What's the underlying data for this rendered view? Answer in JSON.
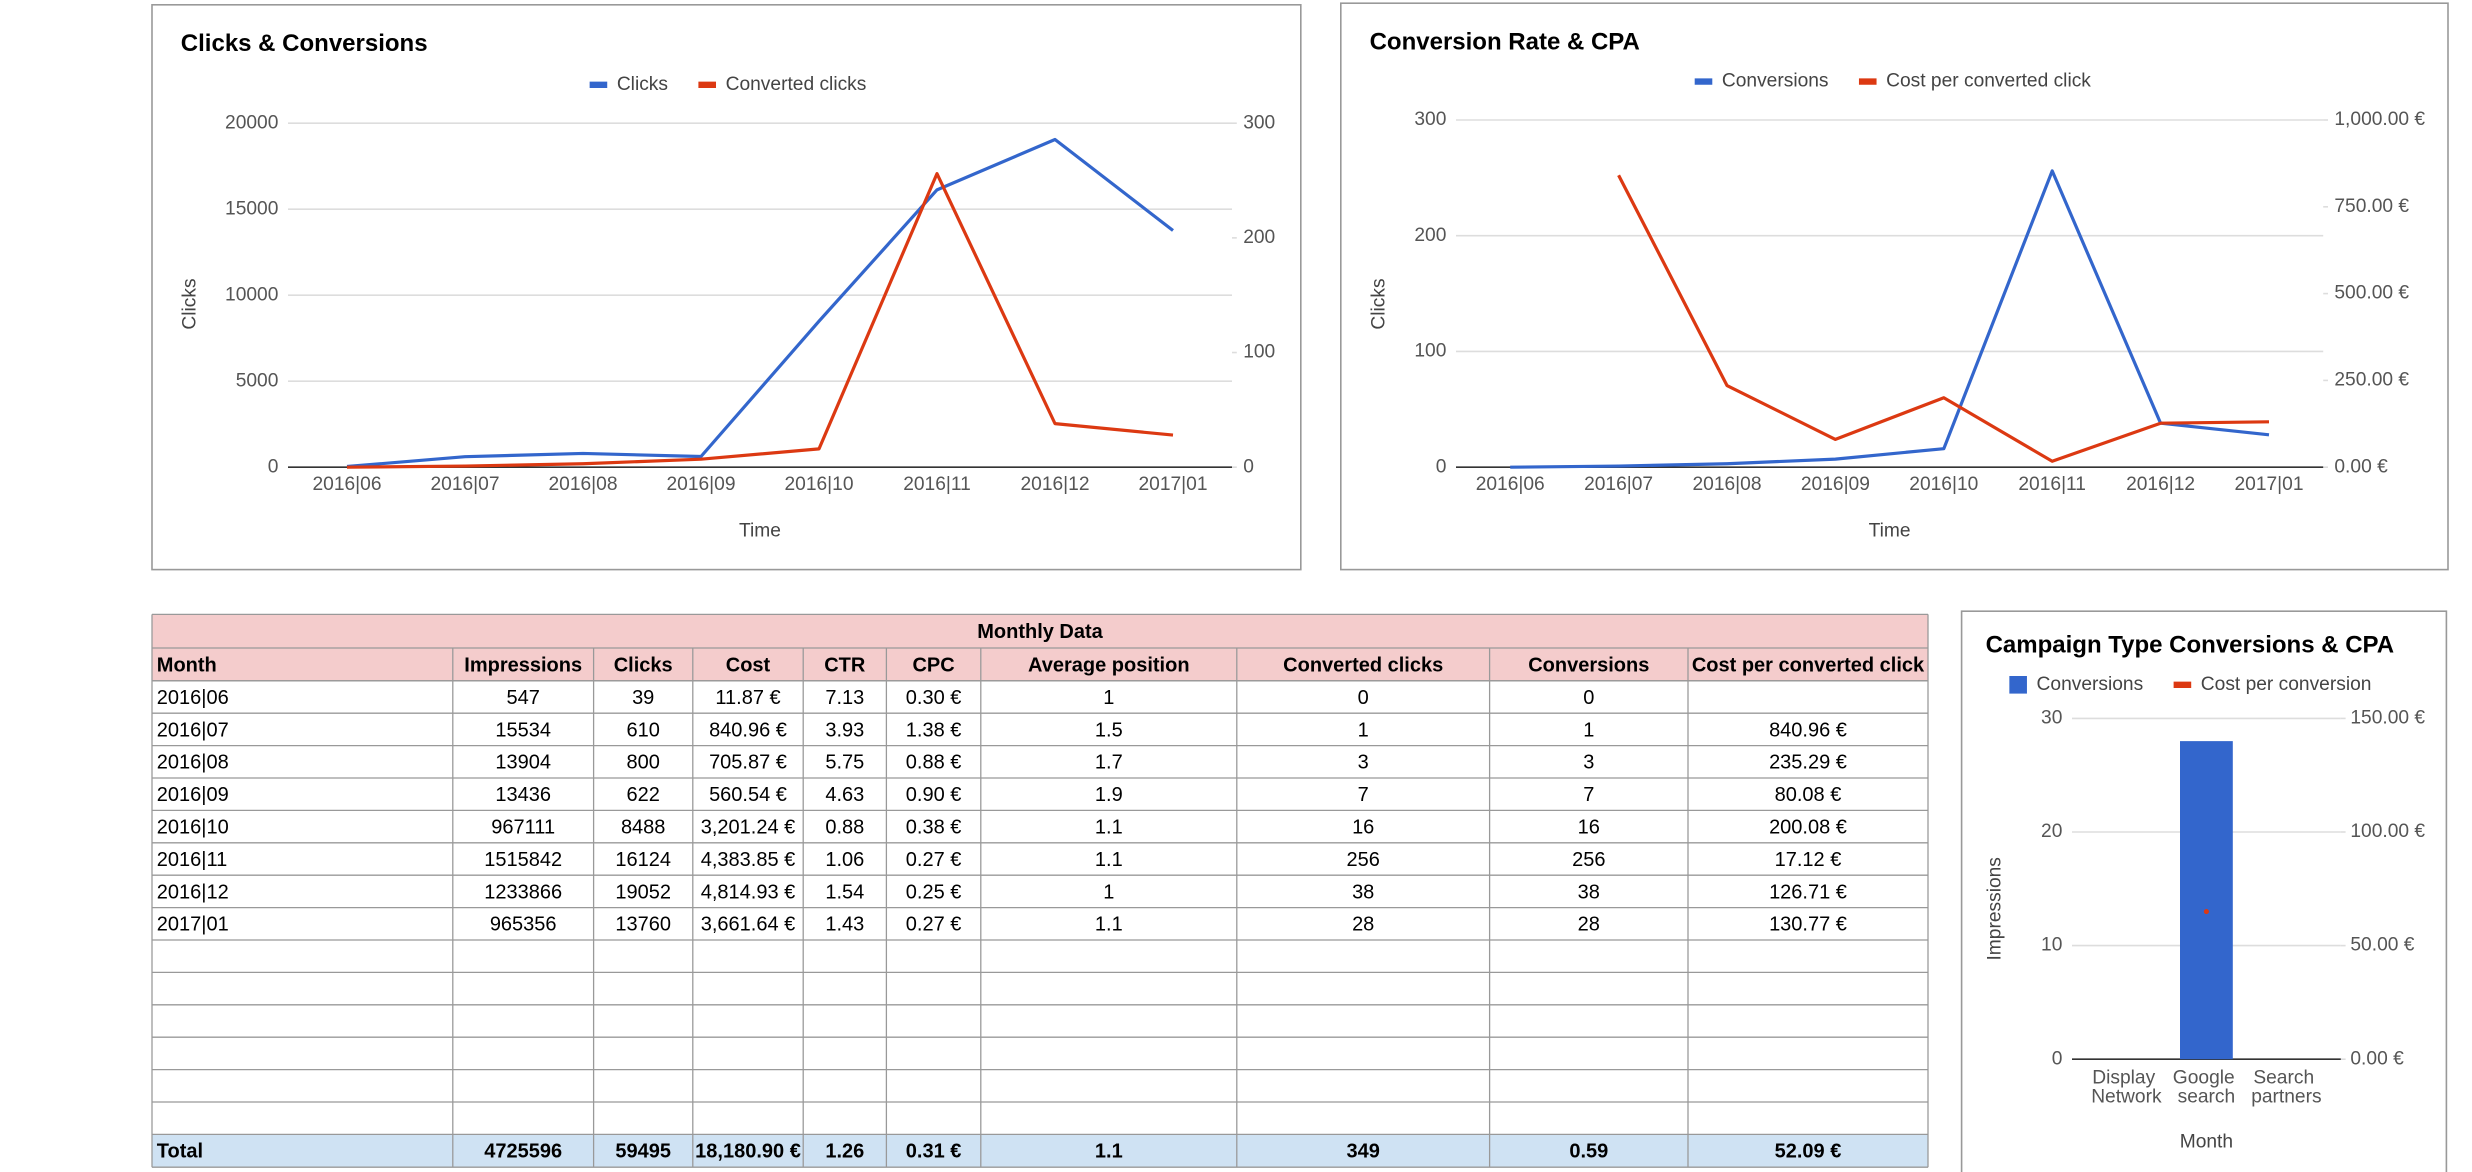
{
  "chart_data": [
    {
      "type": "line",
      "title": "Clicks & Conversions",
      "x_label": "Time",
      "y_label": "Clicks",
      "categories": [
        "2016|06",
        "2016|07",
        "2016|08",
        "2016|09",
        "2016|10",
        "2016|11",
        "2016|12",
        "2017|01"
      ],
      "series": [
        {
          "name": "Clicks",
          "color": "#3366cc",
          "values": [
            39,
            610,
            800,
            622,
            8488,
            16124,
            19052,
            13760
          ]
        },
        {
          "name": "Converted clicks",
          "color": "#dc3912",
          "axis": "y2",
          "values": [
            0,
            1,
            3,
            7,
            16,
            256,
            38,
            28
          ]
        }
      ],
      "ylim": [
        0,
        20000
      ],
      "yticks": [
        0,
        5000,
        10000,
        15000,
        20000
      ],
      "y2lim": [
        0,
        300
      ],
      "y2ticks": [
        0,
        100,
        200,
        300
      ],
      "grid": true,
      "legend": "top"
    },
    {
      "type": "line",
      "title": "Conversion Rate & CPA",
      "x_label": "Time",
      "y_label": "Clicks",
      "categories": [
        "2016|06",
        "2016|07",
        "2016|08",
        "2016|09",
        "2016|10",
        "2016|11",
        "2016|12",
        "2017|01"
      ],
      "series": [
        {
          "name": "Conversions",
          "color": "#3366cc",
          "values": [
            0,
            1,
            3,
            7,
            16,
            256,
            38,
            28
          ]
        },
        {
          "name": "Cost per converted click",
          "color": "#dc3912",
          "axis": "y2",
          "values": [
            null,
            840.96,
            235.29,
            80.08,
            200.08,
            17.12,
            126.71,
            130.77
          ]
        }
      ],
      "ylim": [
        0,
        300
      ],
      "yticks": [
        0,
        100,
        200,
        300
      ],
      "y2lim": [
        0,
        1000
      ],
      "y2ticks": [
        {
          "value": 0,
          "label": "0.00 €"
        },
        {
          "value": 250,
          "label": "250.00 €"
        },
        {
          "value": 500,
          "label": "500.00 €"
        },
        {
          "value": 750,
          "label": "750.00 €"
        },
        {
          "value": 1000,
          "label": "1,000.00 €"
        }
      ],
      "grid": true,
      "legend": "top"
    },
    {
      "type": "bar",
      "title": "Campaign Type Conversions & CPA",
      "x_label": "Month",
      "y_label": "Impressions",
      "categories": [
        "Display Network",
        "Google search",
        "Search partners"
      ],
      "series": [
        {
          "name": "Conversions",
          "color": "#3366cc",
          "values": [
            0,
            28,
            0
          ]
        },
        {
          "name": "Cost per conversion",
          "color": "#dc3912",
          "axis": "y2",
          "type": "line",
          "values": [
            null,
            65,
            null
          ]
        }
      ],
      "ylim": [
        0,
        30
      ],
      "yticks": [
        0,
        10,
        20,
        30
      ],
      "y2lim": [
        0,
        150
      ],
      "y2ticks": [
        {
          "value": 0,
          "label": "0.00 €"
        },
        {
          "value": 50,
          "label": "50.00 €"
        },
        {
          "value": 100,
          "label": "100.00 €"
        },
        {
          "value": 150,
          "label": "150.00 €"
        }
      ],
      "grid": true,
      "legend": "top"
    }
  ],
  "table": {
    "title": "Monthly Data",
    "columns": [
      "Month",
      "Impressions",
      "Clicks",
      "Cost",
      "CTR",
      "CPC",
      "Average position",
      "Converted clicks",
      "Conversions",
      "Cost per converted click"
    ],
    "rows": [
      [
        "2016|06",
        547,
        39,
        "11.87 €",
        7.13,
        "0.30 €",
        1,
        0,
        0,
        null
      ],
      [
        "2016|07",
        15534,
        610,
        "840.96 €",
        3.93,
        "1.38 €",
        1.5,
        1,
        1,
        "840.96 €"
      ],
      [
        "2016|08",
        13904,
        800,
        "705.87 €",
        5.75,
        "0.88 €",
        1.7,
        3,
        3,
        "235.29 €"
      ],
      [
        "2016|09",
        13436,
        622,
        "560.54 €",
        4.63,
        "0.90 €",
        1.9,
        7,
        7,
        "80.08 €"
      ],
      [
        "2016|10",
        967111,
        8488,
        "3,201.24 €",
        0.88,
        "0.38 €",
        1.1,
        16,
        16,
        "200.08 €"
      ],
      [
        "2016|11",
        1515842,
        16124,
        "4,383.85 €",
        1.06,
        "0.27 €",
        1.1,
        256,
        256,
        "17.12 €"
      ],
      [
        "2016|12",
        1233866,
        19052,
        "4,814.93 €",
        1.54,
        "0.25 €",
        1,
        38,
        38,
        "126.71 €"
      ],
      [
        "2017|01",
        965356,
        13760,
        "3,661.64 €",
        1.43,
        "0.27 €",
        1.1,
        28,
        28,
        "130.77 €"
      ]
    ],
    "total": [
      "Total",
      4725596,
      59495,
      "18,180.90 €",
      1.26,
      "0.31 €",
      1.1,
      349,
      0.59,
      "52.09 €"
    ]
  }
}
